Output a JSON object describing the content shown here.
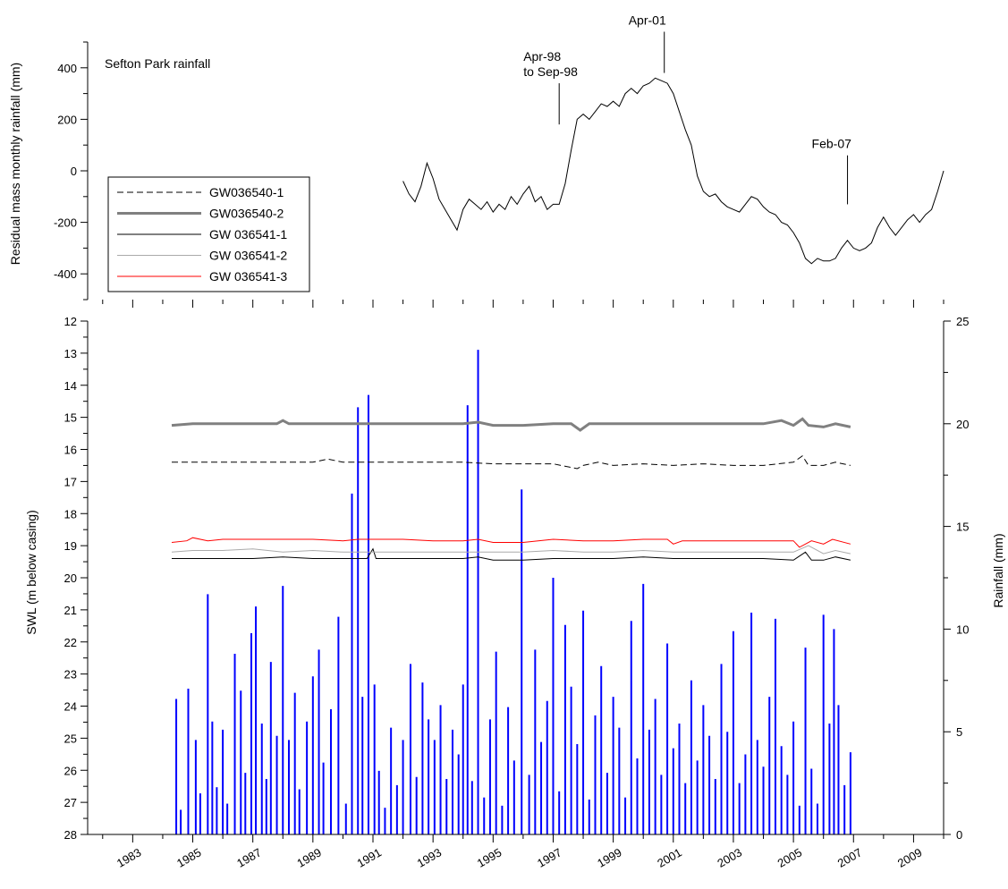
{
  "chart_data": [
    {
      "type": "line",
      "title": "Sefton Park rainfall",
      "xlabel": "",
      "ylabel": "Residual mass monthly rainfall (mm)",
      "xlim": [
        1981.5,
        2010.0
      ],
      "ylim": [
        -500,
        500
      ],
      "y_ticks": [
        400,
        200,
        0,
        -200,
        -400
      ],
      "y_tick_labels": [
        "400",
        "200",
        "0",
        "-200",
        "-400"
      ],
      "series": [
        {
          "x": [
            1992.0,
            1992.2,
            1992.4,
            1992.6,
            1992.8,
            1993.0,
            1993.2,
            1993.4,
            1993.6,
            1993.8,
            1994.0,
            1994.2,
            1994.4,
            1994.6,
            1994.8,
            1995.0,
            1995.2,
            1995.4,
            1995.6,
            1995.8,
            1996.0,
            1996.2,
            1996.4,
            1996.6,
            1996.8,
            1997.0,
            1997.2,
            1997.4,
            1997.6,
            1997.8,
            1998.0,
            1998.2,
            1998.4,
            1998.6,
            1998.8,
            1999.0,
            1999.2,
            1999.4,
            1999.6,
            1999.8,
            2000.0,
            2000.2,
            2000.4,
            2000.6,
            2000.8,
            2001.0,
            2001.2,
            2001.4,
            2001.6,
            2001.8,
            2002.0,
            2002.2,
            2002.4,
            2002.6,
            2002.8,
            2003.0,
            2003.2,
            2003.4,
            2003.6,
            2003.8,
            2004.0,
            2004.2,
            2004.4,
            2004.6,
            2004.8,
            2005.0,
            2005.2,
            2005.4,
            2005.6,
            2005.8,
            2006.0,
            2006.2,
            2006.4,
            2006.6,
            2006.8,
            2007.0,
            2007.2,
            2007.4,
            2007.6,
            2007.8,
            2008.0,
            2008.2,
            2008.4,
            2008.6,
            2008.8,
            2009.0,
            2009.2,
            2009.4,
            2009.6,
            2009.8,
            2010.0
          ],
          "y": [
            -40,
            -90,
            -120,
            -60,
            30,
            -30,
            -110,
            -150,
            -190,
            -230,
            -150,
            -110,
            -130,
            -150,
            -120,
            -160,
            -130,
            -150,
            -100,
            -130,
            -90,
            -60,
            -120,
            -100,
            -150,
            -130,
            -130,
            -50,
            80,
            200,
            220,
            200,
            230,
            260,
            250,
            270,
            250,
            300,
            320,
            300,
            330,
            340,
            360,
            350,
            340,
            300,
            230,
            160,
            100,
            -20,
            -80,
            -100,
            -90,
            -120,
            -140,
            -150,
            -160,
            -130,
            -100,
            -110,
            -140,
            -160,
            -170,
            -200,
            -210,
            -240,
            -280,
            -340,
            -360,
            -340,
            -350,
            -350,
            -340,
            -300,
            -270,
            -300,
            -310,
            -300,
            -280,
            -220,
            -180,
            -220,
            -250,
            -220,
            -190,
            -170,
            -200,
            -170,
            -150,
            -80,
            0
          ]
        }
      ],
      "annotations": [
        {
          "lines": [
            "Apr-98",
            "to Sep-98"
          ],
          "x": 1997.2,
          "y_from": 180,
          "y_to": 340
        },
        {
          "lines": [
            "Apr-01"
          ],
          "x": 2000.7,
          "y_from": 380,
          "y_to": 540
        },
        {
          "lines": [
            "Feb-07"
          ],
          "x": 2006.8,
          "y_from": -130,
          "y_to": 60
        }
      ]
    },
    {
      "type": "line",
      "title": "",
      "xlabel": "",
      "ylabel": "SWL (m below casing)",
      "y2label": "Rainfall (mm)",
      "xlim": [
        1981.5,
        2010.0
      ],
      "ylim": [
        28,
        12
      ],
      "y2lim": [
        0,
        25
      ],
      "x_ticks": [
        1983,
        1985,
        1987,
        1989,
        1991,
        1993,
        1995,
        1997,
        1999,
        2001,
        2003,
        2005,
        2007,
        2009
      ],
      "x_tick_labels": [
        "1983",
        "1985",
        "1987",
        "1989",
        "1991",
        "1993",
        "1995",
        "1997",
        "1999",
        "2001",
        "2003",
        "2005",
        "2007",
        "2009"
      ],
      "y_ticks": [
        12,
        13,
        14,
        15,
        16,
        17,
        18,
        19,
        20,
        21,
        22,
        23,
        24,
        25,
        26,
        27,
        28
      ],
      "y_tick_labels": [
        "12",
        "13",
        "14",
        "15",
        "16",
        "17",
        "18",
        "19",
        "20",
        "21",
        "22",
        "23",
        "24",
        "25",
        "26",
        "27",
        "28"
      ],
      "y2_ticks": [
        0,
        5,
        10,
        15,
        20,
        25
      ],
      "y2_tick_labels": [
        "0",
        "5",
        "10",
        "15",
        "20",
        "25"
      ],
      "legend": "top-left",
      "series": [
        {
          "name": "GW036540-1",
          "color": "#000000",
          "style": "dashed",
          "x": [
            1984.3,
            1985.0,
            1986.0,
            1987.0,
            1988.0,
            1989.0,
            1989.5,
            1990.0,
            1991.0,
            1992.0,
            1993.0,
            1994.0,
            1995.0,
            1996.0,
            1997.0,
            1997.8,
            1998.0,
            1998.5,
            1999.0,
            2000.0,
            2001.0,
            2002.0,
            2003.0,
            2004.0,
            2005.0,
            2005.3,
            2005.5,
            2006.0,
            2006.4,
            2006.9
          ],
          "y": [
            16.4,
            16.4,
            16.4,
            16.4,
            16.4,
            16.4,
            16.3,
            16.4,
            16.4,
            16.4,
            16.4,
            16.4,
            16.45,
            16.45,
            16.45,
            16.6,
            16.5,
            16.4,
            16.5,
            16.45,
            16.5,
            16.45,
            16.5,
            16.5,
            16.4,
            16.2,
            16.5,
            16.5,
            16.4,
            16.5
          ]
        },
        {
          "name": "GW036540-2",
          "color": "#808080",
          "style": "thick",
          "x": [
            1984.3,
            1985.0,
            1986.0,
            1987.0,
            1987.8,
            1988.0,
            1988.2,
            1988.5,
            1989.0,
            1990.0,
            1991.0,
            1992.0,
            1993.0,
            1994.0,
            1994.5,
            1995.0,
            1996.0,
            1997.0,
            1997.6,
            1997.9,
            1998.2,
            1999.0,
            2000.0,
            2001.0,
            2002.0,
            2003.0,
            2004.0,
            2004.6,
            2005.0,
            2005.3,
            2005.5,
            2006.0,
            2006.4,
            2006.9
          ],
          "y": [
            15.25,
            15.2,
            15.2,
            15.2,
            15.2,
            15.1,
            15.2,
            15.2,
            15.2,
            15.2,
            15.2,
            15.2,
            15.2,
            15.2,
            15.15,
            15.25,
            15.25,
            15.2,
            15.2,
            15.4,
            15.2,
            15.2,
            15.2,
            15.2,
            15.2,
            15.2,
            15.2,
            15.1,
            15.25,
            15.05,
            15.25,
            15.3,
            15.2,
            15.3
          ]
        },
        {
          "name": "GW 036541-1",
          "color": "#000000",
          "style": "thin",
          "x": [
            1984.3,
            1985.0,
            1986.0,
            1987.0,
            1988.0,
            1989.0,
            1990.0,
            1990.8,
            1991.0,
            1991.1,
            1992.0,
            1993.0,
            1994.0,
            1994.5,
            1995.0,
            1996.0,
            1997.0,
            1998.0,
            1999.0,
            2000.0,
            2001.0,
            2002.0,
            2003.0,
            2004.0,
            2005.0,
            2005.4,
            2005.6,
            2006.0,
            2006.4,
            2006.9
          ],
          "y": [
            19.4,
            19.4,
            19.4,
            19.4,
            19.35,
            19.4,
            19.4,
            19.4,
            19.1,
            19.4,
            19.4,
            19.4,
            19.4,
            19.35,
            19.45,
            19.45,
            19.4,
            19.4,
            19.4,
            19.35,
            19.4,
            19.4,
            19.4,
            19.4,
            19.45,
            19.2,
            19.45,
            19.45,
            19.35,
            19.45
          ]
        },
        {
          "name": "GW 036541-2",
          "color": "#aaaaaa",
          "style": "thin",
          "x": [
            1984.3,
            1985.0,
            1986.0,
            1987.0,
            1988.0,
            1989.0,
            1990.0,
            1991.0,
            1992.0,
            1993.0,
            1994.0,
            1995.0,
            1996.0,
            1997.0,
            1998.0,
            1999.0,
            2000.0,
            2001.0,
            2002.0,
            2003.0,
            2004.0,
            2005.0,
            2005.5,
            2006.0,
            2006.4,
            2006.9
          ],
          "y": [
            19.2,
            19.15,
            19.15,
            19.1,
            19.2,
            19.15,
            19.2,
            19.2,
            19.2,
            19.2,
            19.2,
            19.2,
            19.2,
            19.15,
            19.2,
            19.2,
            19.15,
            19.2,
            19.2,
            19.2,
            19.2,
            19.2,
            19.0,
            19.25,
            19.15,
            19.25
          ]
        },
        {
          "name": "GW 036541-3",
          "color": "#ff0000",
          "style": "thin",
          "x": [
            1984.3,
            1984.8,
            1985.0,
            1985.5,
            1986.0,
            1987.0,
            1988.0,
            1989.0,
            1990.0,
            1990.5,
            1991.0,
            1992.0,
            1993.0,
            1994.0,
            1994.5,
            1995.0,
            1996.0,
            1997.0,
            1998.0,
            1999.0,
            2000.0,
            2000.8,
            2001.0,
            2001.3,
            2002.0,
            2003.0,
            2004.0,
            2005.0,
            2005.2,
            2005.6,
            2006.0,
            2006.3,
            2006.9
          ],
          "y": [
            18.9,
            18.85,
            18.75,
            18.85,
            18.8,
            18.8,
            18.8,
            18.8,
            18.85,
            18.8,
            18.8,
            18.8,
            18.85,
            18.85,
            18.8,
            18.9,
            18.9,
            18.8,
            18.85,
            18.85,
            18.8,
            18.8,
            18.95,
            18.85,
            18.85,
            18.85,
            18.85,
            18.85,
            19.05,
            18.85,
            18.95,
            18.8,
            18.95
          ]
        },
        {
          "name": "Rainfall (mm)",
          "type": "bar",
          "axis": "y2",
          "color": "#0000ff",
          "x": [
            1984.45,
            1984.6,
            1984.85,
            1985.1,
            1985.25,
            1985.5,
            1985.65,
            1985.8,
            1986.0,
            1986.15,
            1986.4,
            1986.6,
            1986.75,
            1986.95,
            1987.1,
            1987.3,
            1987.45,
            1987.6,
            1987.8,
            1988.0,
            1988.2,
            1988.4,
            1988.55,
            1988.8,
            1989.0,
            1989.2,
            1989.35,
            1989.6,
            1989.85,
            1990.1,
            1990.3,
            1990.5,
            1990.65,
            1990.85,
            1991.05,
            1991.2,
            1991.4,
            1991.6,
            1991.8,
            1992.0,
            1992.25,
            1992.45,
            1992.65,
            1992.85,
            1993.05,
            1993.25,
            1993.45,
            1993.65,
            1993.85,
            1994.0,
            1994.15,
            1994.3,
            1994.5,
            1994.7,
            1994.9,
            1995.1,
            1995.3,
            1995.5,
            1995.7,
            1995.95,
            1996.2,
            1996.4,
            1996.6,
            1996.8,
            1997.0,
            1997.2,
            1997.4,
            1997.6,
            1997.8,
            1998.0,
            1998.2,
            1998.4,
            1998.6,
            1998.8,
            1999.0,
            1999.2,
            1999.4,
            1999.6,
            1999.8,
            2000.0,
            2000.2,
            2000.4,
            2000.6,
            2000.8,
            2001.0,
            2001.2,
            2001.4,
            2001.6,
            2001.8,
            2002.0,
            2002.2,
            2002.4,
            2002.6,
            2002.8,
            2003.0,
            2003.2,
            2003.4,
            2003.6,
            2003.8,
            2004.0,
            2004.2,
            2004.4,
            2004.6,
            2004.8,
            2005.0,
            2005.2,
            2005.4,
            2005.6,
            2005.8,
            2006.0,
            2006.2,
            2006.35,
            2006.5,
            2006.7,
            2006.9
          ],
          "values": [
            6.6,
            1.2,
            7.1,
            4.6,
            2.0,
            11.7,
            5.5,
            2.3,
            5.1,
            1.5,
            8.8,
            7.0,
            3.0,
            9.8,
            11.1,
            5.4,
            2.7,
            8.4,
            4.8,
            12.1,
            4.6,
            6.9,
            2.2,
            5.5,
            7.7,
            9.0,
            3.5,
            6.1,
            10.6,
            1.5,
            16.6,
            20.8,
            6.7,
            21.4,
            7.3,
            3.1,
            1.3,
            5.2,
            2.4,
            4.6,
            8.3,
            2.8,
            7.4,
            5.6,
            4.6,
            6.3,
            2.7,
            5.1,
            3.9,
            7.3,
            20.9,
            2.6,
            23.6,
            1.8,
            5.6,
            8.9,
            1.4,
            6.2,
            3.6,
            16.8,
            2.9,
            9.0,
            4.5,
            6.5,
            12.5,
            2.1,
            10.2,
            7.2,
            4.4,
            10.9,
            1.7,
            5.8,
            8.2,
            3.0,
            6.7,
            5.2,
            1.8,
            10.4,
            3.7,
            12.2,
            5.1,
            6.6,
            2.9,
            9.3,
            4.2,
            5.4,
            2.5,
            7.5,
            3.6,
            6.3,
            4.8,
            2.7,
            8.3,
            5.0,
            9.9,
            2.5,
            3.9,
            10.8,
            4.6,
            3.3,
            6.7,
            10.5,
            4.3,
            2.9,
            5.5,
            1.4,
            9.1,
            3.2,
            1.5,
            10.7,
            5.4,
            10.0,
            6.3,
            2.4,
            4.0
          ]
        }
      ]
    }
  ]
}
